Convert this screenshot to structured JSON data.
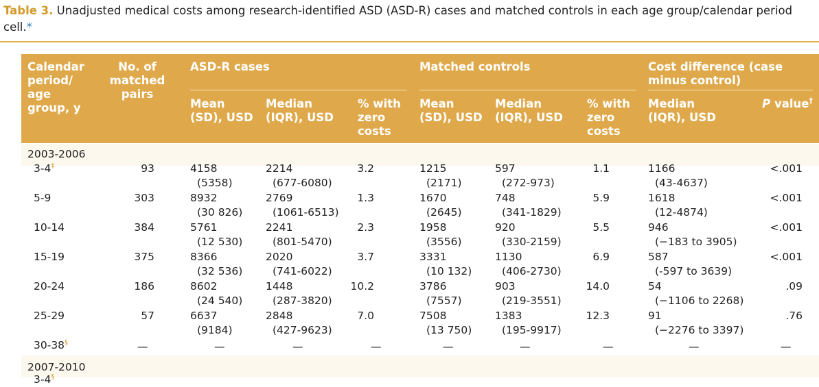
{
  "caption": {
    "label": "Table 3.",
    "text": "Unadjusted medical costs among research-identified ASD (ASD-R) cases and matched controls in each age group/calendar period cell.",
    "marker": "*"
  },
  "header": {
    "calendar": [
      "Calendar",
      "period/",
      "age",
      "group, y"
    ],
    "pairs": [
      "No. of",
      "matched",
      "pairs"
    ],
    "cases_group": "ASD-R cases",
    "controls_group": "Matched controls",
    "diff_group": [
      "Cost difference (case",
      "minus control)"
    ],
    "mean": [
      "Mean",
      "(SD), USD"
    ],
    "median": [
      "Median",
      "(IQR), USD"
    ],
    "zero": [
      "% with",
      "zero",
      "costs"
    ],
    "diff_median": [
      "Median",
      "(IQR), USD"
    ],
    "pvalue": "P value",
    "pvalue_italic": "P",
    "pvalue_rest": " value",
    "pvalue_mark": "†"
  },
  "sections": [
    {
      "label": "2003-2006",
      "rows": [
        {
          "age": "3-4",
          "mark": "‡",
          "pairs": "93",
          "case_mean": "4158",
          "case_sd": "(5358)",
          "case_median": "2214",
          "case_iqr": "(677-6080)",
          "case_zero": "3.2",
          "ctrl_mean": "1215",
          "ctrl_sd": "(2171)",
          "ctrl_median": "597",
          "ctrl_iqr": "(272-973)",
          "ctrl_zero": "1.1",
          "diff_median": "1166",
          "diff_iqr": "(43-4637)",
          "p": "<.001"
        },
        {
          "age": "5-9",
          "mark": "",
          "pairs": "303",
          "case_mean": "8932",
          "case_sd": "(30 826)",
          "case_median": "2769",
          "case_iqr": "(1061-6513)",
          "case_zero": "1.3",
          "ctrl_mean": "1670",
          "ctrl_sd": "(2645)",
          "ctrl_median": "748",
          "ctrl_iqr": "(341-1829)",
          "ctrl_zero": "5.9",
          "diff_median": "1618",
          "diff_iqr": "(12-4874)",
          "p": "<.001"
        },
        {
          "age": "10-14",
          "mark": "",
          "pairs": "384",
          "case_mean": "5761",
          "case_sd": "(12 530)",
          "case_median": "2241",
          "case_iqr": "(801-5470)",
          "case_zero": "2.3",
          "ctrl_mean": "1958",
          "ctrl_sd": "(3556)",
          "ctrl_median": "920",
          "ctrl_iqr": "(330-2159)",
          "ctrl_zero": "5.5",
          "diff_median": "946",
          "diff_iqr": "(−183 to 3905)",
          "p": "<.001"
        },
        {
          "age": "15-19",
          "mark": "",
          "pairs": "375",
          "case_mean": "8366",
          "case_sd": "(32 536)",
          "case_median": "2020",
          "case_iqr": "(741-6022)",
          "case_zero": "3.7",
          "ctrl_mean": "3331",
          "ctrl_sd": "(10 132)",
          "ctrl_median": "1130",
          "ctrl_iqr": "(406-2730)",
          "ctrl_zero": "6.9",
          "diff_median": "587",
          "diff_iqr": "(-597 to 3639)",
          "p": "<.001"
        },
        {
          "age": "20-24",
          "mark": "",
          "pairs": "186",
          "case_mean": "8602",
          "case_sd": "(24 540)",
          "case_median": "1448",
          "case_iqr": "(287-3820)",
          "case_zero": "10.2",
          "ctrl_mean": "3786",
          "ctrl_sd": "(7557)",
          "ctrl_median": "903",
          "ctrl_iqr": "(219-3551)",
          "ctrl_zero": "14.0",
          "diff_median": "54",
          "diff_iqr": "(−1106 to 2268)",
          "p": ".09"
        },
        {
          "age": "25-29",
          "mark": "",
          "pairs": "57",
          "case_mean": "6637",
          "case_sd": "(9184)",
          "case_median": "2848",
          "case_iqr": "(427-9623)",
          "case_zero": "7.0",
          "ctrl_mean": "7508",
          "ctrl_sd": "(13 750)",
          "ctrl_median": "1383",
          "ctrl_iqr": "(195-9917)",
          "ctrl_zero": "12.3",
          "diff_median": "91",
          "diff_iqr": "(−2276 to 3397)",
          "p": ".76"
        }
      ],
      "dash_row": {
        "age": "30-38",
        "mark": "§",
        "dash": "—"
      }
    },
    {
      "label": "2007-2010",
      "partial_row": {
        "age": "3-4",
        "mark": "§"
      }
    }
  ]
}
